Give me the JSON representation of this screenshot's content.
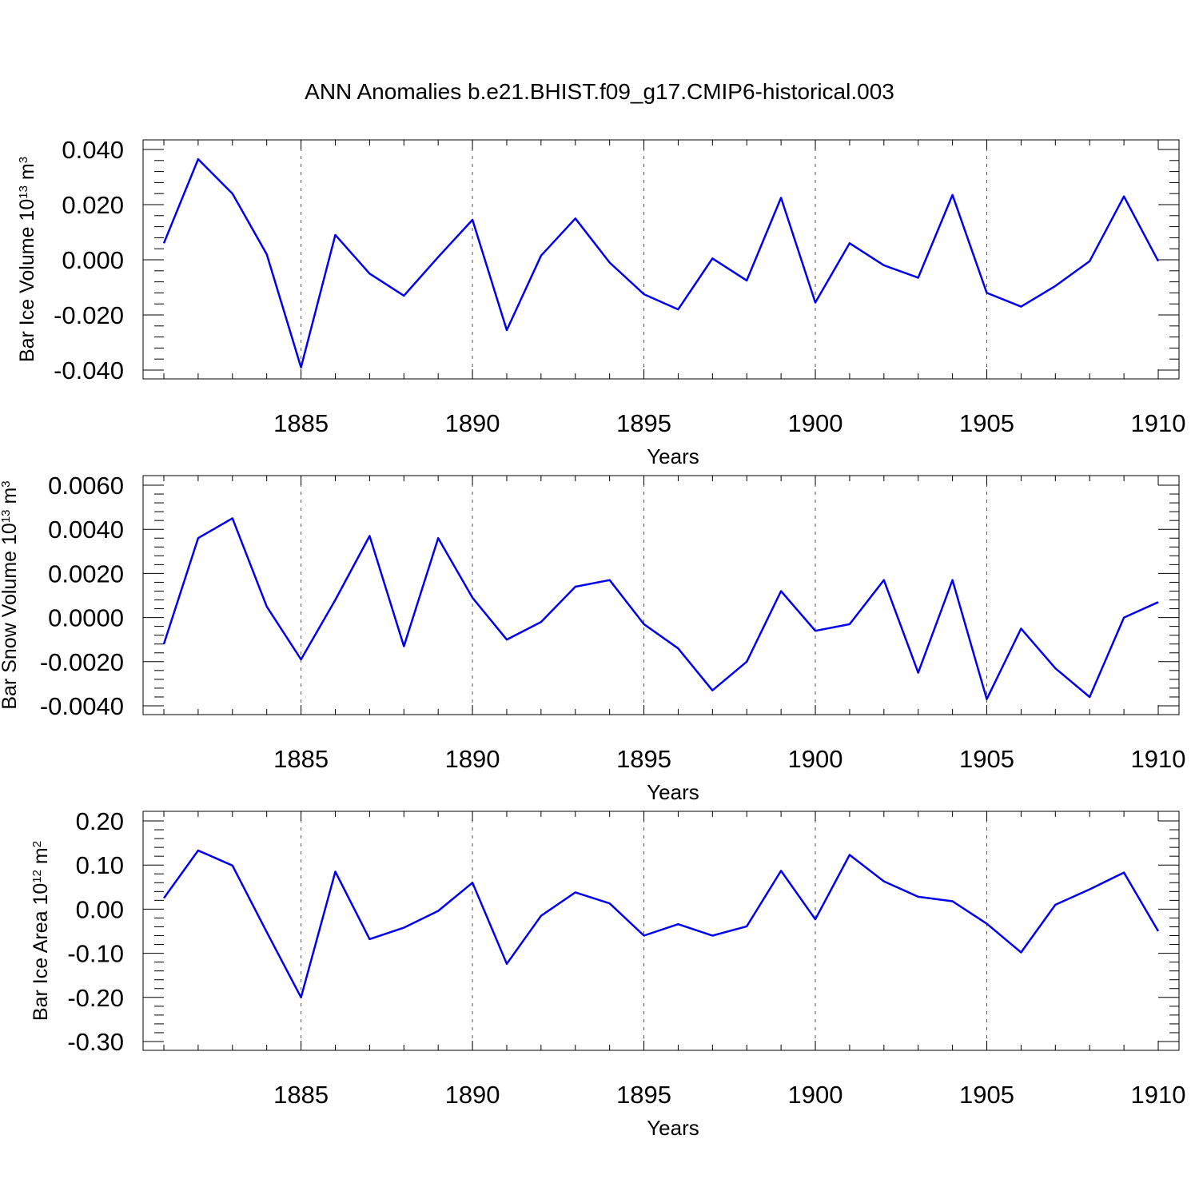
{
  "title": "ANN Anomalies b.e21.BHIST.f09_g17.CMIP6-historical.003",
  "colors": {
    "series": "#0000ee",
    "axes": "#000000",
    "grid": "#555555"
  },
  "chart_data": [
    {
      "type": "line",
      "xlabel": "Years",
      "ylabel": {
        "text": "Bar Ice Volume 10",
        "exp": "13",
        "unit": " m",
        "unit_exp": "3"
      },
      "xlim": [
        1881,
        1910
      ],
      "ylim": [
        -0.04,
        0.04
      ],
      "xticks": [
        1885,
        1890,
        1895,
        1900,
        1905,
        1910
      ],
      "yticks": [
        -0.04,
        -0.02,
        0.0,
        0.02,
        0.04
      ],
      "ytick_labels": [
        "-0.040",
        "-0.020",
        "0.000",
        "0.020",
        "0.040"
      ],
      "grid": "vertical dashed at x ticks",
      "series": [
        {
          "x": [
            1881,
            1882,
            1883,
            1884,
            1885,
            1886,
            1887,
            1888,
            1889,
            1890,
            1891,
            1892,
            1893,
            1894,
            1895,
            1896,
            1897,
            1898,
            1899,
            1900,
            1901,
            1902,
            1903,
            1904,
            1905,
            1906,
            1907,
            1908,
            1909,
            1910
          ],
          "values": [
            0.006,
            0.0365,
            0.024,
            0.002,
            -0.039,
            0.009,
            -0.005,
            -0.013,
            0.001,
            0.0145,
            -0.0255,
            0.0015,
            0.015,
            -0.001,
            -0.0125,
            -0.018,
            0.0005,
            -0.0075,
            0.0225,
            -0.0155,
            0.006,
            -0.002,
            -0.0065,
            0.0235,
            -0.012,
            -0.017,
            -0.0095,
            -0.0005,
            0.023,
            -0.0005
          ]
        }
      ]
    },
    {
      "type": "line",
      "xlabel": "Years",
      "ylabel": {
        "text": "Bar Snow Volume 10",
        "exp": "13",
        "unit": " m",
        "unit_exp": "3"
      },
      "xlim": [
        1881,
        1910
      ],
      "ylim": [
        -0.004,
        0.006
      ],
      "xticks": [
        1885,
        1890,
        1895,
        1900,
        1905,
        1910
      ],
      "yticks": [
        -0.004,
        -0.002,
        0.0,
        0.002,
        0.004,
        0.006
      ],
      "ytick_labels": [
        "-0.0040",
        "-0.0020",
        "0.0000",
        "0.0020",
        "0.0040",
        "0.0060"
      ],
      "grid": "vertical dashed at x ticks",
      "series": [
        {
          "x": [
            1881,
            1882,
            1883,
            1884,
            1885,
            1886,
            1887,
            1888,
            1889,
            1890,
            1891,
            1892,
            1893,
            1894,
            1895,
            1896,
            1897,
            1898,
            1899,
            1900,
            1901,
            1902,
            1903,
            1904,
            1905,
            1906,
            1907,
            1908,
            1909,
            1910
          ],
          "values": [
            -0.0012,
            0.0036,
            0.0045,
            0.0005,
            -0.0019,
            0.0008,
            0.0037,
            -0.0013,
            0.0036,
            0.0009,
            -0.001,
            -0.0002,
            0.0014,
            0.0017,
            -0.0003,
            -0.0014,
            -0.0033,
            -0.002,
            0.0012,
            -0.0006,
            -0.0003,
            0.0017,
            -0.0025,
            0.0017,
            -0.0037,
            -0.0005,
            -0.0023,
            -0.0036,
            0.0,
            0.0007
          ]
        }
      ]
    },
    {
      "type": "line",
      "xlabel": "Years",
      "ylabel": {
        "text": "Bar Ice Area 10",
        "exp": "12",
        "unit": " m",
        "unit_exp": "2"
      },
      "xlim": [
        1881,
        1910
      ],
      "ylim": [
        -0.3,
        0.2
      ],
      "xticks": [
        1885,
        1890,
        1895,
        1900,
        1905,
        1910
      ],
      "yticks": [
        -0.3,
        -0.2,
        -0.1,
        0.0,
        0.1,
        0.2
      ],
      "ytick_labels": [
        "-0.30",
        "-0.20",
        "-0.10",
        "0.00",
        "0.10",
        "0.20"
      ],
      "grid": "vertical dashed at x ticks",
      "series": [
        {
          "x": [
            1881,
            1882,
            1883,
            1884,
            1885,
            1886,
            1887,
            1888,
            1889,
            1890,
            1891,
            1892,
            1893,
            1894,
            1895,
            1896,
            1897,
            1898,
            1899,
            1900,
            1901,
            1902,
            1903,
            1904,
            1905,
            1906,
            1907,
            1908,
            1909,
            1910
          ],
          "values": [
            0.025,
            0.133,
            0.099,
            -0.052,
            -0.2,
            0.085,
            -0.068,
            -0.042,
            -0.004,
            0.06,
            -0.124,
            -0.015,
            0.038,
            0.013,
            -0.06,
            -0.034,
            -0.06,
            -0.039,
            0.087,
            -0.023,
            0.123,
            0.063,
            0.028,
            0.018,
            -0.033,
            -0.098,
            0.01,
            0.045,
            0.083,
            -0.05
          ]
        }
      ]
    }
  ]
}
